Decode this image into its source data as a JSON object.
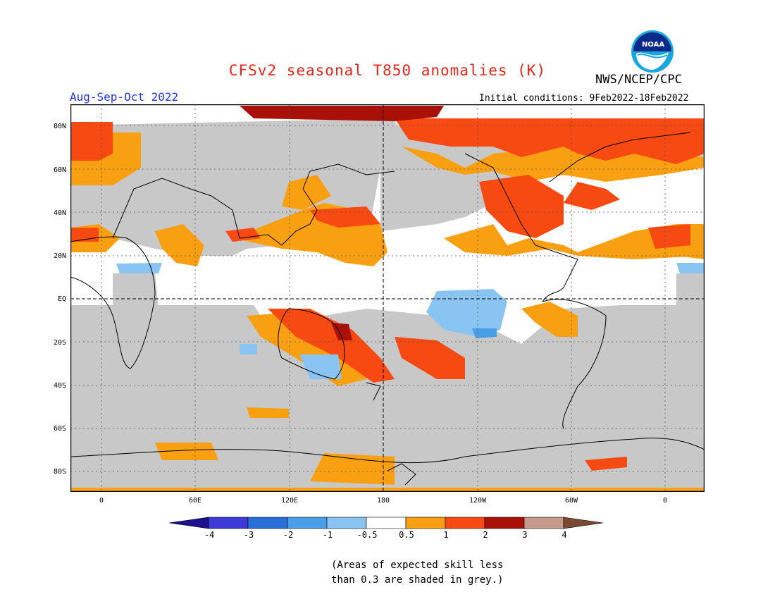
{
  "title": "CFSv2 seasonal T850 anomalies (K)",
  "org": "NWS/NCEP/CPC",
  "season": "Aug-Sep-Oct 2022",
  "initial_conditions": "Initial conditions: 9Feb2022-18Feb2022",
  "logo_text": "NOAA",
  "lat_labels": [
    "80N",
    "60N",
    "40N",
    "20N",
    "EQ",
    "20S",
    "40S",
    "60S",
    "80S"
  ],
  "lon_labels": [
    "0",
    "60E",
    "120E",
    "180",
    "120W",
    "60W",
    "0"
  ],
  "colorbar": {
    "labels": [
      "-4",
      "-3",
      "-2",
      "-1",
      "-0.5",
      "0.5",
      "1",
      "2",
      "3",
      "4"
    ],
    "colors": [
      "#1d0f8c",
      "#3e3ad8",
      "#2a6fd8",
      "#4a9ee8",
      "#8ac4f2",
      "#ffffff",
      "#f9a012",
      "#f74a12",
      "#a81008",
      "#c59a8a",
      "#7a4a36"
    ]
  },
  "note_line1": "(Areas of expected skill less",
  "note_line2": "than 0.3 are shaded in grey.)"
}
